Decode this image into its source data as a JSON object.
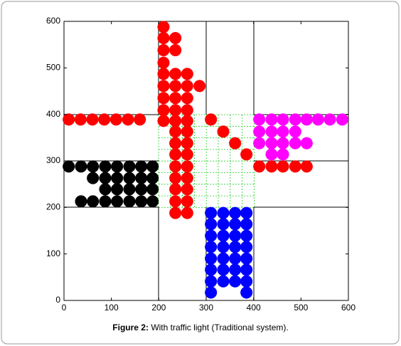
{
  "chart_data": {
    "type": "scatter",
    "xlim": [
      0,
      600
    ],
    "ylim": [
      0,
      600
    ],
    "xticks": [
      0,
      100,
      200,
      300,
      400,
      500,
      600
    ],
    "yticks": [
      0,
      100,
      200,
      300,
      400,
      500,
      600
    ],
    "series": [
      {
        "color": "#ff0000",
        "x": [
          10,
          35,
          60,
          85,
          110,
          135,
          160,
          210,
          210,
          235,
          210,
          235,
          210,
          210,
          235,
          260,
          210,
          235,
          260,
          286,
          210,
          235,
          260,
          210,
          235,
          260,
          210,
          235,
          260,
          235,
          260,
          235,
          260,
          235,
          260,
          235,
          260,
          235,
          260,
          235,
          260,
          235,
          260,
          235,
          260,
          310,
          336,
          361,
          385,
          412,
          438,
          462,
          488,
          512
        ],
        "values": [
          389,
          389,
          389,
          389,
          389,
          389,
          389,
          588,
          564,
          564,
          538,
          538,
          511,
          487,
          487,
          487,
          461,
          461,
          461,
          461,
          435,
          435,
          435,
          409,
          409,
          409,
          386,
          386,
          386,
          363,
          363,
          338,
          338,
          314,
          314,
          288,
          288,
          263,
          263,
          239,
          239,
          213,
          213,
          188,
          188,
          389,
          363,
          338,
          314,
          288,
          288,
          288,
          288,
          288
        ]
      },
      {
        "color": "#ff00ff",
        "x": [
          412,
          438,
          462,
          488,
          512,
          536,
          561,
          587,
          412,
          438,
          462,
          488,
          412,
          438,
          462,
          488,
          512,
          438,
          462
        ],
        "values": [
          389,
          389,
          389,
          389,
          389,
          389,
          389,
          389,
          363,
          363,
          363,
          363,
          338,
          338,
          338,
          338,
          338,
          314,
          314
        ]
      },
      {
        "color": "#000000",
        "x": [
          10,
          36,
          61,
          87,
          112,
          138,
          163,
          187,
          61,
          87,
          112,
          138,
          163,
          187,
          87,
          112,
          138,
          163,
          187,
          36,
          61,
          87,
          112,
          138,
          163,
          187
        ],
        "values": [
          288,
          288,
          288,
          288,
          288,
          288,
          288,
          288,
          263,
          263,
          263,
          263,
          263,
          263,
          239,
          239,
          239,
          239,
          239,
          213,
          213,
          213,
          213,
          213,
          213,
          213
        ]
      },
      {
        "color": "#0000ff",
        "x": [
          310,
          336,
          361,
          385,
          310,
          336,
          361,
          385,
          310,
          336,
          361,
          385,
          310,
          336,
          361,
          385,
          310,
          336,
          361,
          385,
          310,
          336,
          361,
          385,
          310,
          336,
          361,
          385,
          310,
          385
        ],
        "values": [
          188,
          188,
          188,
          188,
          164,
          164,
          164,
          164,
          139,
          139,
          139,
          139,
          115,
          115,
          115,
          115,
          90,
          90,
          90,
          90,
          66,
          66,
          66,
          66,
          41,
          41,
          41,
          41,
          17,
          17
        ]
      }
    ]
  },
  "caption": {
    "label": "Figure 2:",
    "text": "With traffic light (Traditional system)."
  }
}
